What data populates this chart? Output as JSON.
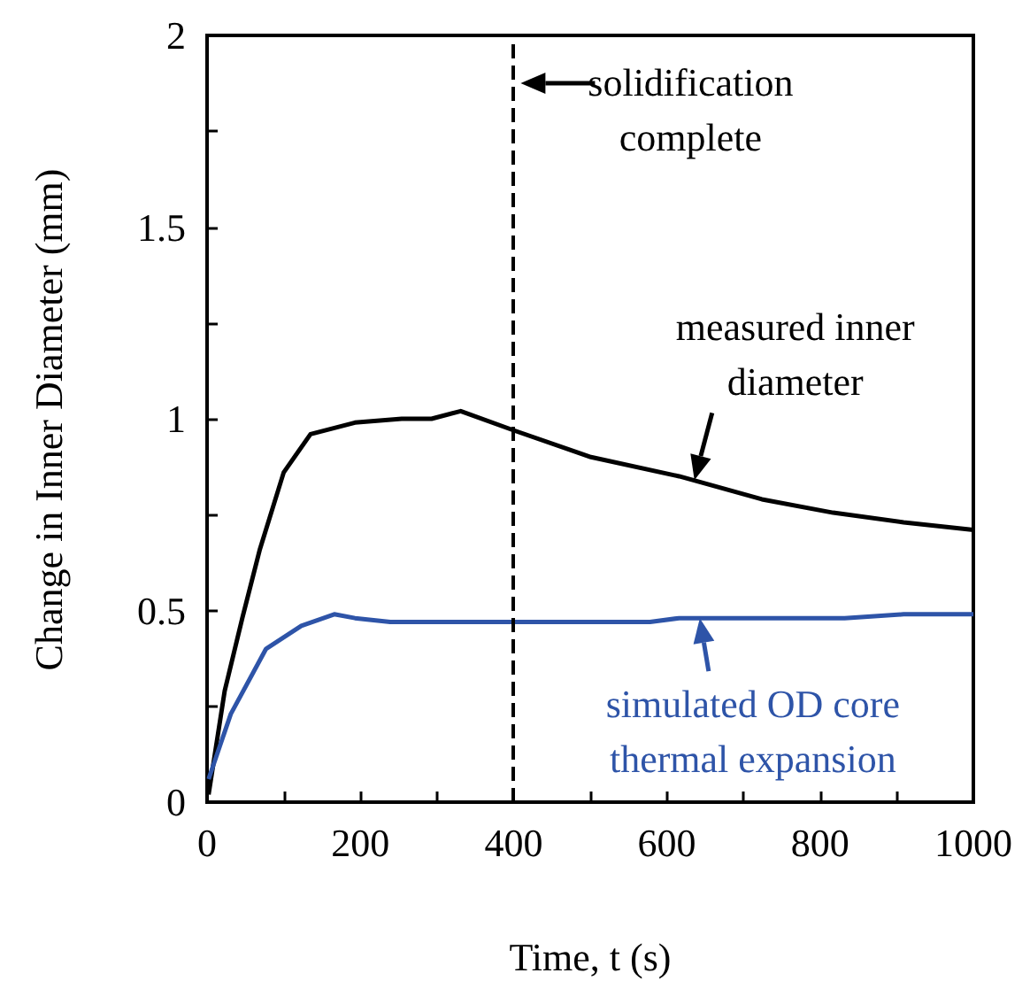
{
  "chart_data": {
    "type": "line",
    "xlabel": "Time, t (s)",
    "ylabel": "Change in Inner Diameter (mm)",
    "xlim": [
      0,
      1000
    ],
    "ylim": [
      0,
      2
    ],
    "xticks": [
      0,
      {
        "value": 100,
        "label": null
      },
      200,
      {
        "value": 300,
        "label": null
      },
      400,
      {
        "value": 500,
        "label": null
      },
      600,
      {
        "value": 700,
        "label": null
      },
      800,
      {
        "value": 900,
        "label": null
      },
      1000
    ],
    "yticks": [
      0,
      {
        "value": 0.25,
        "label": null
      },
      {
        "value": 0.5,
        "label": "0.5"
      },
      {
        "value": 0.75,
        "label": null
      },
      1,
      {
        "value": 1.25,
        "label": null
      },
      {
        "value": 1.5,
        "label": "1.5"
      },
      {
        "value": 1.75,
        "label": null
      },
      2
    ],
    "grid": false,
    "marker": "none",
    "line_style": "solid",
    "series": [
      {
        "color": "#000000",
        "x": [
          2,
          23,
          46,
          69,
          100,
          135,
          193,
          254,
          293,
          331,
          400,
          501,
          616,
          724,
          817,
          909,
          1000
        ],
        "values": [
          0.02,
          0.29,
          0.48,
          0.66,
          0.86,
          0.96,
          0.99,
          1.0,
          1.0,
          1.02,
          0.97,
          0.9,
          0.85,
          0.79,
          0.755,
          0.73,
          0.71
        ]
      },
      {
        "color": "#2e54a8",
        "x": [
          2,
          31,
          77,
          123,
          166,
          193,
          239,
          400,
          578,
          616,
          832,
          909,
          1000
        ],
        "values": [
          0.06,
          0.23,
          0.4,
          0.46,
          0.49,
          0.48,
          0.47,
          0.47,
          0.47,
          0.48,
          0.48,
          0.49,
          0.49
        ]
      }
    ],
    "ref_lines": [
      {
        "axis": "x",
        "value": 400,
        "label": "solidification\ncomplete",
        "color": "#000000",
        "line_style": "dashed"
      }
    ],
    "annotations": [
      {
        "text": "measured inner\ndiameter",
        "x": 636,
        "y": 0.84
      },
      {
        "text": "simulated OD core\nthermal expansion",
        "x": 643,
        "y": 0.48
      }
    ]
  }
}
